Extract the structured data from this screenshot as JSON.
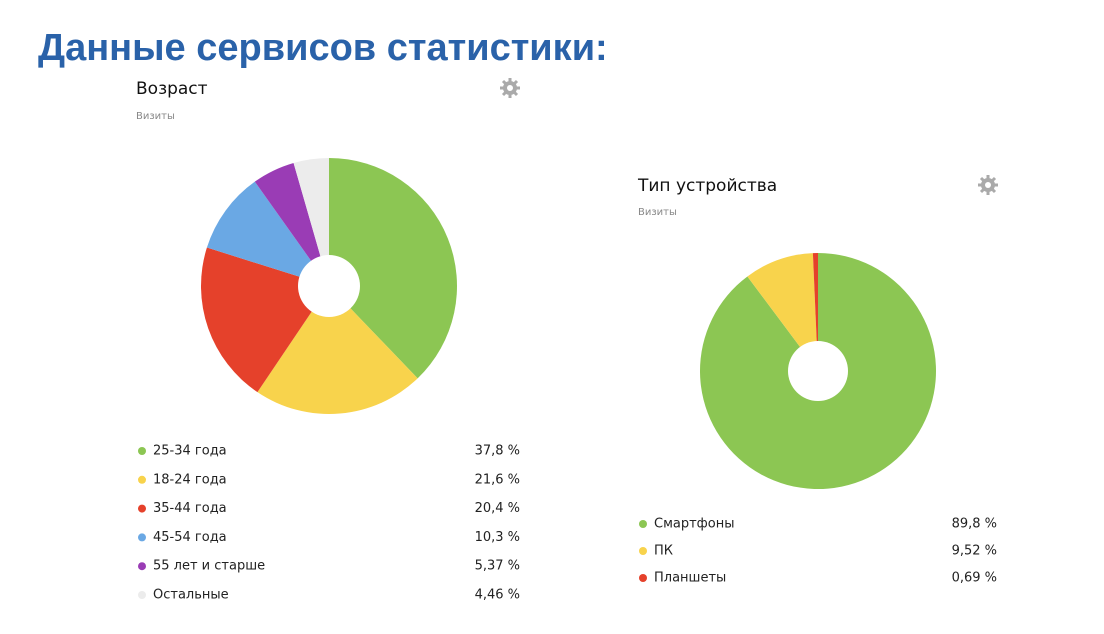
{
  "title": "Данные сервисов статистики:",
  "chart_data": [
    {
      "type": "pie",
      "title": "Возраст",
      "subtitle": "Визиты",
      "categories": [
        "25-34 года",
        "18-24 года",
        "35-44 года",
        "45-54 года",
        "55 лет и старше",
        "Остальные"
      ],
      "values": [
        37.8,
        21.6,
        20.4,
        10.3,
        5.37,
        4.46
      ],
      "value_labels": [
        "37,8 %",
        "21,6 %",
        "20,4 %",
        "10,3 %",
        "5,37 %",
        "4,46 %"
      ],
      "colors": [
        "#8cc653",
        "#f8d34c",
        "#e5412b",
        "#6aa8e4",
        "#9a3cb5",
        "#ececec"
      ]
    },
    {
      "type": "pie",
      "title": "Тип устройства",
      "subtitle": "Визиты",
      "categories": [
        "Смартфоны",
        "ПК",
        "Планшеты"
      ],
      "values": [
        89.8,
        9.52,
        0.69
      ],
      "value_labels": [
        "89,8 %",
        "9,52 %",
        "0,69 %"
      ],
      "colors": [
        "#8cc653",
        "#f8d34c",
        "#e5412b"
      ]
    }
  ]
}
